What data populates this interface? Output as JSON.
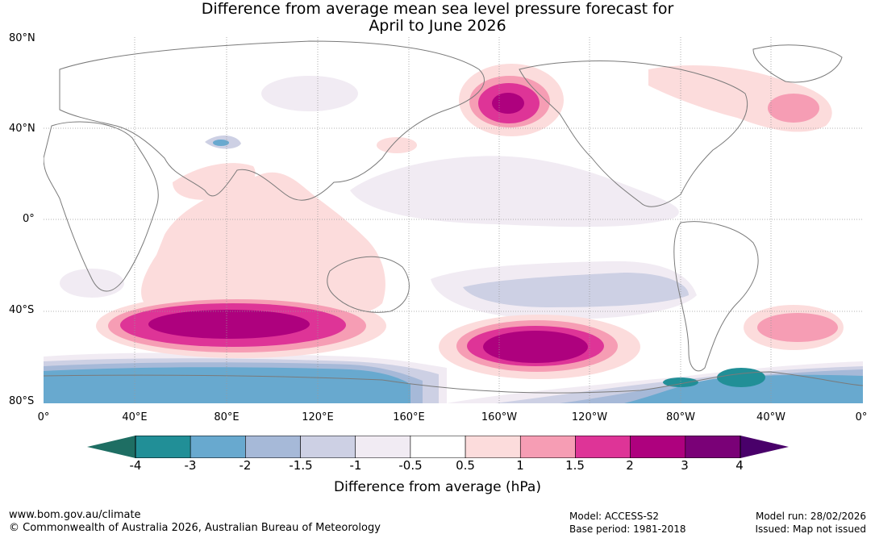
{
  "title": {
    "line1": "Difference from average mean sea level pressure forecast for",
    "line2": "April to June 2026"
  },
  "axes": {
    "lat_labels": [
      "80°N",
      "40°N",
      "0°",
      "40°S",
      "80°S"
    ],
    "lon_labels": [
      "0°",
      "40°E",
      "80°E",
      "120°E",
      "160°E",
      "160°W",
      "120°W",
      "80°W",
      "40°W",
      "0°"
    ]
  },
  "legend": {
    "tick_labels": [
      "-4",
      "-3",
      "-2",
      "-1.5",
      "-1",
      "-0.5",
      "0.5",
      "1",
      "1.5",
      "2",
      "3",
      "4"
    ],
    "colors": [
      "#1e6e63",
      "#218f97",
      "#68a9cf",
      "#a6b9d8",
      "#cdd0e4",
      "#f1ebf3",
      "#ffffff",
      "#fcdcdc",
      "#f69db4",
      "#de3497",
      "#ae017e",
      "#7a0177",
      "#49006a"
    ],
    "label": "Difference from average (hPa)"
  },
  "footer": {
    "website": "www.bom.gov.au/climate",
    "copyright": "© Commonwealth of Australia 2026, Australian Bureau of Meteorology",
    "model": "Model: ACCESS-S2",
    "base_period": "Base period: 1981-2018",
    "model_run": "Model run: 28/02/2026",
    "issued": "Issued: Map not issued"
  }
}
